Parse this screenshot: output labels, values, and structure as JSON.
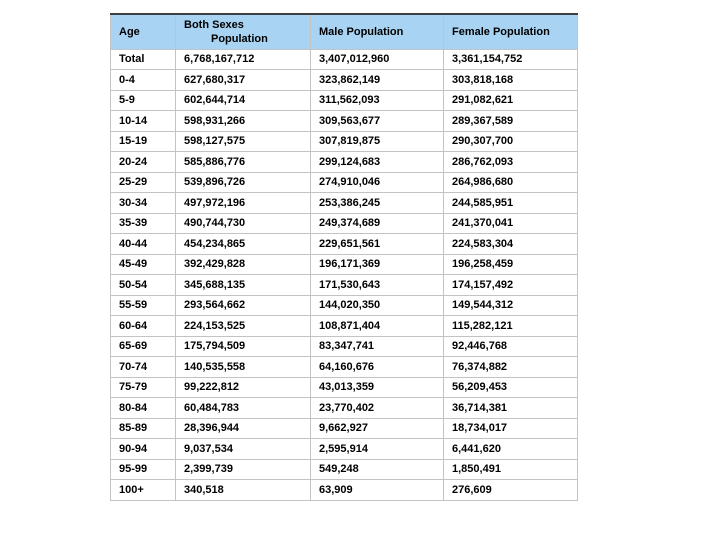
{
  "colors": {
    "header_bg": "#a8d3f2",
    "grid_line": "#c3c3c3",
    "top_rule": "#3f3f3f",
    "text": "#000000",
    "page_bg": "#ffffff"
  },
  "table_header": {
    "age": "Age",
    "both_line1": "Both Sexes",
    "both_line2": "Population",
    "male": "Male Population",
    "female": "Female Population"
  },
  "chart_data": {
    "type": "table",
    "title": "",
    "columns": [
      "Age",
      "Both Sexes Population",
      "Male Population",
      "Female Population"
    ],
    "column_ids": [
      "age",
      "both-sexes-population",
      "male-population",
      "female-population"
    ],
    "rows": [
      [
        "Total",
        "6,768,167,712",
        "3,407,012,960",
        "3,361,154,752"
      ],
      [
        "0-4",
        "627,680,317",
        "323,862,149",
        "303,818,168"
      ],
      [
        "5-9",
        "602,644,714",
        "311,562,093",
        "291,082,621"
      ],
      [
        "10-14",
        "598,931,266",
        "309,563,677",
        "289,367,589"
      ],
      [
        "15-19",
        "598,127,575",
        "307,819,875",
        "290,307,700"
      ],
      [
        "20-24",
        "585,886,776",
        "299,124,683",
        "286,762,093"
      ],
      [
        "25-29",
        "539,896,726",
        "274,910,046",
        "264,986,680"
      ],
      [
        "30-34",
        "497,972,196",
        "253,386,245",
        "244,585,951"
      ],
      [
        "35-39",
        "490,744,730",
        "249,374,689",
        "241,370,041"
      ],
      [
        "40-44",
        "454,234,865",
        "229,651,561",
        "224,583,304"
      ],
      [
        "45-49",
        "392,429,828",
        "196,171,369",
        "196,258,459"
      ],
      [
        "50-54",
        "345,688,135",
        "171,530,643",
        "174,157,492"
      ],
      [
        "55-59",
        "293,564,662",
        "144,020,350",
        "149,544,312"
      ],
      [
        "60-64",
        "224,153,525",
        "108,871,404",
        "115,282,121"
      ],
      [
        "65-69",
        "175,794,509",
        "83,347,741",
        "92,446,768"
      ],
      [
        "70-74",
        "140,535,558",
        "64,160,676",
        "76,374,882"
      ],
      [
        "75-79",
        "99,222,812",
        "43,013,359",
        "56,209,453"
      ],
      [
        "80-84",
        "60,484,783",
        "23,770,402",
        "36,714,381"
      ],
      [
        "85-89",
        "28,396,944",
        "9,662,927",
        "18,734,017"
      ],
      [
        "90-94",
        "9,037,534",
        "2,595,914",
        "6,441,620"
      ],
      [
        "95-99",
        "2,399,739",
        "549,248",
        "1,850,491"
      ],
      [
        "100+",
        "340,518",
        "63,909",
        "276,609"
      ]
    ]
  }
}
